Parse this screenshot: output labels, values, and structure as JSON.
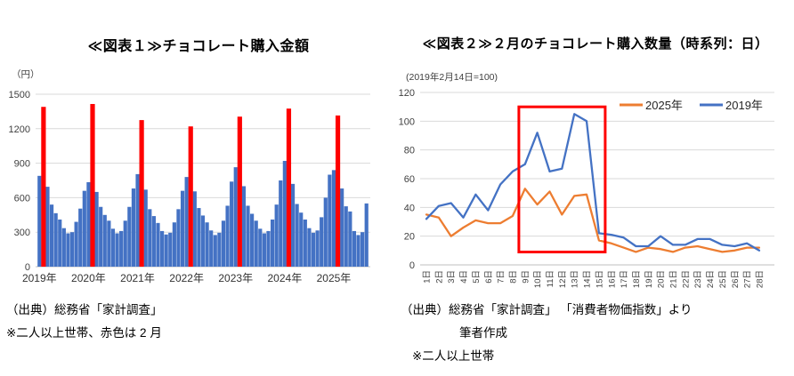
{
  "fig1": {
    "source_note": "（出典）総務省「家計調査」",
    "footnote": "※二人以上世帯、赤色は 2 月"
  },
  "fig2": {
    "source_note": "（出典）総務省「家計調査」 「消費者物価指数」より",
    "source_note2": "筆者作成",
    "footnote": "※二人以上世帯"
  },
  "chart_data": [
    {
      "type": "bar",
      "title": "≪図表１≫チョコレート購入金額",
      "ylabel": "（円）",
      "ylim": [
        0,
        1500
      ],
      "yticks": [
        0,
        300,
        600,
        900,
        1200,
        1500
      ],
      "x_start": "2019年1月",
      "x_end": "2025年9月",
      "year_labels": [
        "2019年",
        "2020年",
        "2021年",
        "2022年",
        "2023年",
        "2024年",
        "2025年"
      ],
      "bar_color": "#4472C4",
      "february_color": "#FF0000",
      "february_indices": [
        1,
        13,
        25,
        37,
        49,
        61,
        73
      ],
      "values": [
        790,
        1390,
        695,
        540,
        465,
        410,
        335,
        290,
        300,
        390,
        505,
        660,
        735,
        1415,
        650,
        520,
        450,
        400,
        330,
        290,
        310,
        400,
        520,
        680,
        805,
        1275,
        670,
        500,
        440,
        380,
        310,
        280,
        295,
        385,
        500,
        660,
        780,
        1220,
        655,
        510,
        445,
        385,
        315,
        275,
        295,
        400,
        530,
        740,
        865,
        1305,
        700,
        530,
        460,
        400,
        330,
        290,
        310,
        410,
        540,
        750,
        920,
        1375,
        720,
        545,
        470,
        410,
        335,
        295,
        315,
        430,
        600,
        800,
        840,
        1315,
        680,
        525,
        480,
        310,
        275,
        300,
        550
      ],
      "grid": true,
      "gridline_color": "#D9D9D9"
    },
    {
      "type": "line",
      "title": "≪図表２≫２月のチョコレート購入数量（時系列：日）",
      "note": "(2019年2月14日=100)",
      "ylim": [
        0,
        120
      ],
      "yticks": [
        0,
        20,
        40,
        60,
        80,
        100,
        120
      ],
      "x_labels": [
        "1日",
        "2日",
        "3日",
        "4日",
        "5日",
        "6日",
        "7日",
        "8日",
        "9日",
        "10日",
        "11日",
        "12日",
        "13日",
        "14日",
        "15日",
        "16日",
        "17日",
        "18日",
        "19日",
        "20日",
        "21日",
        "22日",
        "23日",
        "24日",
        "25日",
        "26日",
        "27日",
        "28日"
      ],
      "legend_position": "top-right",
      "series": [
        {
          "name": "2025年",
          "color": "#ED7D31",
          "values": [
            35,
            33,
            20,
            26,
            31,
            29,
            29,
            34,
            53,
            42,
            51,
            35,
            48,
            49,
            17,
            15,
            12,
            9,
            12,
            11,
            9,
            12,
            13,
            11,
            9,
            10,
            12,
            12
          ]
        },
        {
          "name": "2019年",
          "color": "#4472C4",
          "values": [
            32,
            41,
            43,
            33,
            49,
            38,
            56,
            65,
            70,
            92,
            65,
            67,
            105,
            100,
            22,
            21,
            19,
            13,
            13,
            20,
            14,
            14,
            18,
            18,
            14,
            13,
            15,
            10
          ]
        }
      ],
      "highlight_box": {
        "color": "#FF0000",
        "day_start": 9,
        "day_end": 15,
        "y_bottom": 9,
        "y_top": 110
      },
      "grid": true,
      "gridline_color": "#D9D9D9"
    }
  ]
}
